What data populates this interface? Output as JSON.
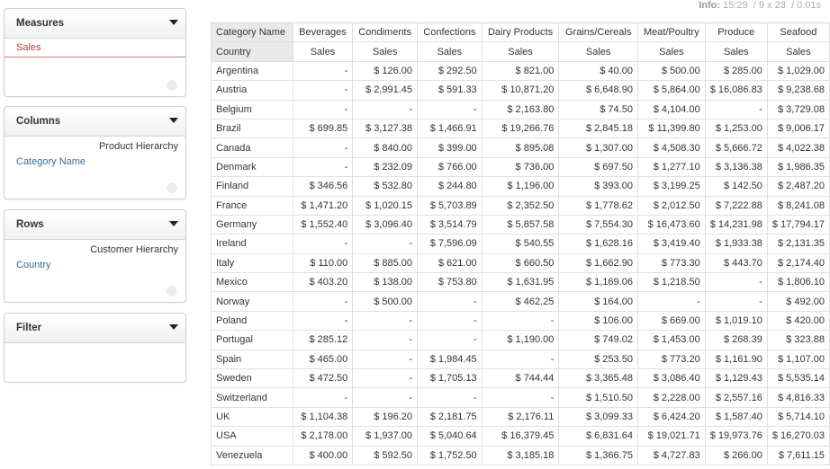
{
  "info": {
    "label": "Info:",
    "time": "15:29",
    "size": "9 x 23",
    "duration": "0.01s"
  },
  "panels": {
    "measures": {
      "title": "Measures",
      "items": [
        "Sales"
      ]
    },
    "columns": {
      "title": "Columns",
      "hierarchy": "Product Hierarchy",
      "field": "Category Name"
    },
    "rows": {
      "title": "Rows",
      "hierarchy": "Customer Hierarchy",
      "field": "Country"
    },
    "filter": {
      "title": "Filter"
    }
  },
  "table": {
    "corner_col": "Category Name",
    "corner_row": "Country",
    "categories": [
      "Beverages",
      "Condiments",
      "Confections",
      "Dairy Products",
      "Grains/Cereals",
      "Meat/Poultry",
      "Produce",
      "Seafood"
    ],
    "measure": "Sales",
    "rows": [
      {
        "country": "Argentina",
        "values": [
          "-",
          "$ 126.00",
          "$ 292.50",
          "$ 821.00",
          "$ 40.00",
          "$ 500.00",
          "$ 285.00",
          "$ 1,029.00"
        ]
      },
      {
        "country": "Austria",
        "values": [
          "-",
          "$ 2,991.45",
          "$ 591.33",
          "$ 10,871.20",
          "$ 6,648.90",
          "$ 5,864.00",
          "$ 16,086.83",
          "$ 9,238.68"
        ]
      },
      {
        "country": "Belgium",
        "values": [
          "-",
          "-",
          "-",
          "$ 2,163.80",
          "$ 74.50",
          "$ 4,104.00",
          "-",
          "$ 3,729.08"
        ]
      },
      {
        "country": "Brazil",
        "values": [
          "$ 699.85",
          "$ 3,127.38",
          "$ 1,466.91",
          "$ 19,266.76",
          "$ 2,845.18",
          "$ 11,399.80",
          "$ 1,253.00",
          "$ 9,006.17"
        ]
      },
      {
        "country": "Canada",
        "values": [
          "-",
          "$ 840.00",
          "$ 399.00",
          "$ 895.08",
          "$ 1,307.00",
          "$ 4,508.30",
          "$ 5,666.72",
          "$ 4,022.38"
        ]
      },
      {
        "country": "Denmark",
        "values": [
          "-",
          "$ 232.09",
          "$ 766.00",
          "$ 736.00",
          "$ 697.50",
          "$ 1,277.10",
          "$ 3,136.38",
          "$ 1,986.35"
        ]
      },
      {
        "country": "Finland",
        "values": [
          "$ 346.56",
          "$ 532.80",
          "$ 244.80",
          "$ 1,196.00",
          "$ 393.00",
          "$ 3,199.25",
          "$ 142.50",
          "$ 2,487.20"
        ]
      },
      {
        "country": "France",
        "values": [
          "$ 1,471.20",
          "$ 1,020.15",
          "$ 5,703.89",
          "$ 2,352.50",
          "$ 1,778.62",
          "$ 2,012.50",
          "$ 7,222.88",
          "$ 8,241.08"
        ]
      },
      {
        "country": "Germany",
        "values": [
          "$ 1,552.40",
          "$ 3,096.40",
          "$ 3,514.79",
          "$ 5,857.58",
          "$ 7,554.30",
          "$ 16,473.60",
          "$ 14,231.98",
          "$ 17,794.17"
        ]
      },
      {
        "country": "Ireland",
        "values": [
          "-",
          "-",
          "$ 7,596.09",
          "$ 540.55",
          "$ 1,628.16",
          "$ 3,419.40",
          "$ 1,933.38",
          "$ 2,131.35"
        ]
      },
      {
        "country": "Italy",
        "values": [
          "$ 110.00",
          "$ 885.00",
          "$ 621.00",
          "$ 660.50",
          "$ 1,662.90",
          "$ 773.30",
          "$ 443.70",
          "$ 2,174.40"
        ]
      },
      {
        "country": "Mexico",
        "values": [
          "$ 403.20",
          "$ 138.00",
          "$ 753.80",
          "$ 1,631.95",
          "$ 1,169.06",
          "$ 1,218.50",
          "-",
          "$ 1,806.10"
        ]
      },
      {
        "country": "Norway",
        "values": [
          "-",
          "$ 500.00",
          "-",
          "$ 462.25",
          "$ 164.00",
          "-",
          "-",
          "$ 492.00"
        ]
      },
      {
        "country": "Poland",
        "values": [
          "-",
          "-",
          "-",
          "-",
          "$ 106.00",
          "$ 669.00",
          "$ 1,019.10",
          "$ 420.00"
        ]
      },
      {
        "country": "Portugal",
        "values": [
          "$ 285.12",
          "-",
          "-",
          "$ 1,190.00",
          "$ 749.02",
          "$ 1,453.00",
          "$ 268.39",
          "$ 323.88"
        ]
      },
      {
        "country": "Spain",
        "values": [
          "$ 465.00",
          "-",
          "$ 1,984.45",
          "-",
          "$ 253.50",
          "$ 773.20",
          "$ 1,161.90",
          "$ 1,107.00"
        ]
      },
      {
        "country": "Sweden",
        "values": [
          "$ 472.50",
          "-",
          "$ 1,705.13",
          "$ 744.44",
          "$ 3,365.48",
          "$ 3,086.40",
          "$ 1,129.43",
          "$ 5,535.14"
        ]
      },
      {
        "country": "Switzerland",
        "values": [
          "-",
          "-",
          "-",
          "-",
          "$ 1,510.50",
          "$ 2,228.00",
          "$ 2,557.16",
          "$ 4,816.33"
        ]
      },
      {
        "country": "UK",
        "values": [
          "$ 1,104.38",
          "$ 196.20",
          "$ 2,181.75",
          "$ 2,176.11",
          "$ 3,099.33",
          "$ 6,424.20",
          "$ 1,587.40",
          "$ 5,714.10"
        ]
      },
      {
        "country": "USA",
        "values": [
          "$ 2,178.00",
          "$ 1,937.00",
          "$ 5,040.64",
          "$ 16,379.45",
          "$ 6,831.64",
          "$ 19,021.71",
          "$ 19,973.76",
          "$ 16,270.03"
        ]
      },
      {
        "country": "Venezuela",
        "values": [
          "$ 400.00",
          "$ 592.50",
          "$ 1,752.50",
          "$ 3,185.18",
          "$ 1,366.75",
          "$ 4,727.83",
          "$ 266.00",
          "$ 7,611.15"
        ]
      }
    ]
  }
}
